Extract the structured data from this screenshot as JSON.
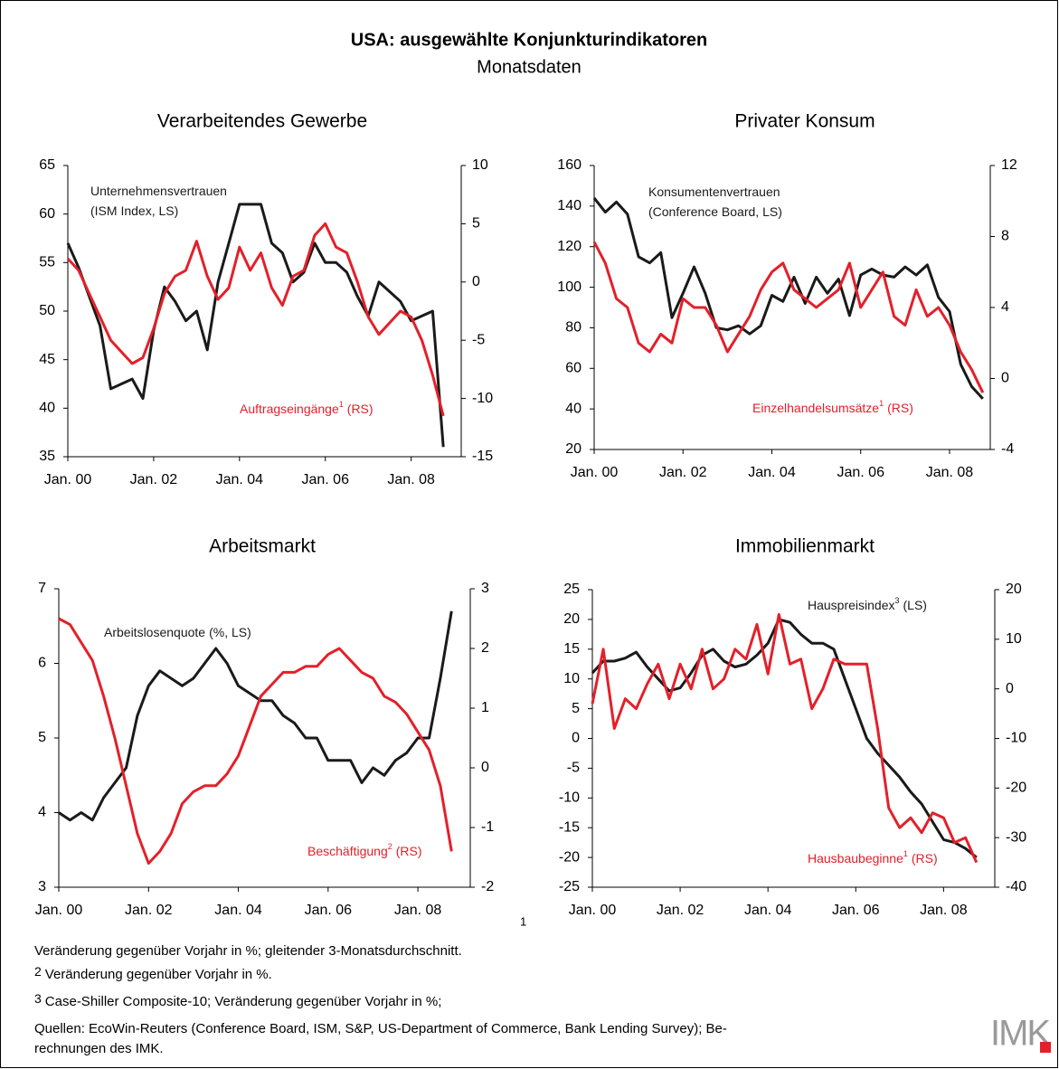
{
  "title": "USA: ausgewählte Konjunkturindikatoren",
  "subtitle": "Monatsdaten",
  "chart_data": [
    {
      "type": "line",
      "title": "Verarbeitendes Gewerbe",
      "x": [
        "2000-01",
        "2000-04",
        "2000-07",
        "2000-10",
        "2001-01",
        "2001-04",
        "2001-07",
        "2001-10",
        "2002-01",
        "2002-04",
        "2002-07",
        "2002-10",
        "2003-01",
        "2003-04",
        "2003-07",
        "2003-10",
        "2004-01",
        "2004-04",
        "2004-07",
        "2004-10",
        "2005-01",
        "2005-04",
        "2005-07",
        "2005-10",
        "2006-01",
        "2006-04",
        "2006-07",
        "2006-10",
        "2007-01",
        "2007-04",
        "2007-07",
        "2007-10",
        "2008-01",
        "2008-04",
        "2008-07",
        "2008-10"
      ],
      "xlim": [
        "2000-01",
        "2009-03"
      ],
      "xticks": [
        {
          "value": "2000-01",
          "label": "Jan. 00"
        },
        {
          "value": "2002-01",
          "label": "Jan. 02"
        },
        {
          "value": "2004-01",
          "label": "Jan. 04"
        },
        {
          "value": "2006-01",
          "label": "Jan. 06"
        },
        {
          "value": "2008-01",
          "label": "Jan. 08"
        }
      ],
      "ylim": [
        35,
        65
      ],
      "yticks": [
        35,
        40,
        45,
        50,
        55,
        60,
        65
      ],
      "y2lim": [
        -15,
        10
      ],
      "y2ticks": [
        -15,
        -10,
        -5,
        0,
        5,
        10
      ],
      "series": [
        {
          "name": "Unternehmensvertrauen",
          "side": "(ISM   Index, LS)",
          "color": "#1a1a1a",
          "axis": "y",
          "values": [
            57,
            54.5,
            51.5,
            48.5,
            42,
            42.5,
            43,
            41,
            48,
            52.5,
            51,
            49,
            50,
            46,
            53,
            57,
            61,
            61,
            61,
            57,
            56,
            53,
            54,
            57,
            55,
            55,
            54,
            51.5,
            49.5,
            53,
            52,
            51,
            49,
            49.5,
            50,
            36
          ]
        },
        {
          "name": "Auftragseingänge",
          "note": "1",
          "side": "(RS)",
          "color": "#e3202a",
          "axis": "y2",
          "values": [
            2,
            1,
            -1,
            -3,
            -5,
            -6,
            -7,
            -6.5,
            -4,
            -1,
            0.5,
            1,
            3.5,
            0.5,
            -1.5,
            -0.5,
            3,
            1,
            2.5,
            -0.5,
            -2,
            0.5,
            1,
            4,
            5,
            3,
            2.5,
            0,
            -3,
            -4.5,
            -3.5,
            -2.5,
            -3,
            -5,
            -8,
            -11.5
          ]
        }
      ]
    },
    {
      "type": "line",
      "title": "Privater Konsum",
      "x": [
        "2000-01",
        "2000-04",
        "2000-07",
        "2000-10",
        "2001-01",
        "2001-04",
        "2001-07",
        "2001-10",
        "2002-01",
        "2002-04",
        "2002-07",
        "2002-10",
        "2003-01",
        "2003-04",
        "2003-07",
        "2003-10",
        "2004-01",
        "2004-04",
        "2004-07",
        "2004-10",
        "2005-01",
        "2005-04",
        "2005-07",
        "2005-10",
        "2006-01",
        "2006-04",
        "2006-07",
        "2006-10",
        "2007-01",
        "2007-04",
        "2007-07",
        "2007-10",
        "2008-01",
        "2008-04",
        "2008-07",
        "2008-10"
      ],
      "xlim": [
        "2000-01",
        "2008-12"
      ],
      "xticks": [
        {
          "value": "2000-01",
          "label": "Jan. 00"
        },
        {
          "value": "2002-01",
          "label": "Jan. 02"
        },
        {
          "value": "2004-01",
          "label": "Jan. 04"
        },
        {
          "value": "2006-01",
          "label": "Jan. 06"
        },
        {
          "value": "2008-01",
          "label": "Jan. 08"
        }
      ],
      "ylim": [
        20,
        160
      ],
      "yticks": [
        20,
        40,
        60,
        80,
        100,
        120,
        140,
        160
      ],
      "y2lim": [
        -4,
        12
      ],
      "y2ticks": [
        -4,
        0,
        4,
        8,
        12
      ],
      "series": [
        {
          "name": "Konsumentenvertrauen",
          "side": "(Conference Board, LS)",
          "color": "#1a1a1a",
          "axis": "y",
          "values": [
            144,
            137,
            142,
            136,
            115,
            112,
            117,
            85,
            97,
            110,
            97,
            80,
            79,
            81,
            77,
            81,
            96,
            93,
            105,
            92,
            105,
            97,
            104,
            86,
            106,
            109,
            106,
            105,
            110,
            106,
            111,
            95,
            88,
            62,
            51,
            45
          ]
        },
        {
          "name": "Einzelhandelsumsätze",
          "note": "1",
          "side": "(RS)",
          "color": "#e3202a",
          "axis": "y2",
          "values": [
            7.7,
            6.5,
            4.5,
            4,
            2,
            1.5,
            2.5,
            2,
            4.5,
            4,
            4,
            3,
            1.5,
            2.5,
            3.5,
            5,
            6,
            6.5,
            5,
            4.5,
            4,
            4.5,
            5,
            6.5,
            4,
            5,
            6,
            3.5,
            3,
            5,
            3.5,
            4,
            3,
            1.5,
            0.5,
            -0.8
          ]
        }
      ]
    },
    {
      "type": "line",
      "title": "Arbeitsmarkt",
      "x": [
        "2000-01",
        "2000-04",
        "2000-07",
        "2000-10",
        "2001-01",
        "2001-04",
        "2001-07",
        "2001-10",
        "2002-01",
        "2002-04",
        "2002-07",
        "2002-10",
        "2003-01",
        "2003-04",
        "2003-07",
        "2003-10",
        "2004-01",
        "2004-04",
        "2004-07",
        "2004-10",
        "2005-01",
        "2005-04",
        "2005-07",
        "2005-10",
        "2006-01",
        "2006-04",
        "2006-07",
        "2006-10",
        "2007-01",
        "2007-04",
        "2007-07",
        "2007-10",
        "2008-01",
        "2008-04",
        "2008-07",
        "2008-10"
      ],
      "xlim": [
        "2000-01",
        "2009-03"
      ],
      "xticks": [
        {
          "value": "2000-01",
          "label": "Jan. 00"
        },
        {
          "value": "2002-01",
          "label": "Jan. 02"
        },
        {
          "value": "2004-01",
          "label": "Jan. 04"
        },
        {
          "value": "2006-01",
          "label": "Jan. 06"
        },
        {
          "value": "2008-01",
          "label": "Jan. 08"
        }
      ],
      "ylim": [
        3,
        7
      ],
      "yticks": [
        3,
        4,
        5,
        6,
        7
      ],
      "y2lim": [
        -2,
        3
      ],
      "y2ticks": [
        -2,
        -1,
        0,
        1,
        2,
        3
      ],
      "series": [
        {
          "name": "Arbeitslosenquote",
          "side": "(%, LS)",
          "color": "#1a1a1a",
          "axis": "y",
          "values": [
            4.0,
            3.9,
            4.0,
            3.9,
            4.2,
            4.4,
            4.6,
            5.3,
            5.7,
            5.9,
            5.8,
            5.7,
            5.8,
            6.0,
            6.2,
            6.0,
            5.7,
            5.6,
            5.5,
            5.5,
            5.3,
            5.2,
            5.0,
            5.0,
            4.7,
            4.7,
            4.7,
            4.4,
            4.6,
            4.5,
            4.7,
            4.8,
            5.0,
            5.0,
            5.8,
            6.7
          ]
        },
        {
          "name": "Beschäftigung",
          "note": "2",
          "side": "(RS)",
          "color": "#e3202a",
          "axis": "y2",
          "values": [
            2.5,
            2.4,
            2.1,
            1.8,
            1.2,
            0.5,
            -0.3,
            -1.1,
            -1.6,
            -1.4,
            -1.1,
            -0.6,
            -0.4,
            -0.3,
            -0.3,
            -0.1,
            0.2,
            0.7,
            1.2,
            1.4,
            1.6,
            1.6,
            1.7,
            1.7,
            1.9,
            2.0,
            1.8,
            1.6,
            1.5,
            1.2,
            1.1,
            0.9,
            0.6,
            0.3,
            -0.3,
            -1.4
          ]
        }
      ]
    },
    {
      "type": "line",
      "title": "Immobilienmarkt",
      "x": [
        "2000-01",
        "2000-04",
        "2000-07",
        "2000-10",
        "2001-01",
        "2001-04",
        "2001-07",
        "2001-10",
        "2002-01",
        "2002-04",
        "2002-07",
        "2002-10",
        "2003-01",
        "2003-04",
        "2003-07",
        "2003-10",
        "2004-01",
        "2004-04",
        "2004-07",
        "2004-10",
        "2005-01",
        "2005-04",
        "2005-07",
        "2005-10",
        "2006-01",
        "2006-04",
        "2006-07",
        "2006-10",
        "2007-01",
        "2007-04",
        "2007-07",
        "2007-10",
        "2008-01",
        "2008-04",
        "2008-07",
        "2008-10"
      ],
      "xlim": [
        "2000-01",
        "2009-03"
      ],
      "xticks": [
        {
          "value": "2000-01",
          "label": "Jan. 00"
        },
        {
          "value": "2002-01",
          "label": "Jan. 02"
        },
        {
          "value": "2004-01",
          "label": "Jan. 04"
        },
        {
          "value": "2006-01",
          "label": "Jan. 06"
        },
        {
          "value": "2008-01",
          "label": "Jan. 08"
        }
      ],
      "ylim": [
        -25,
        25
      ],
      "yticks": [
        -25,
        -20,
        -15,
        -10,
        -5,
        0,
        5,
        10,
        15,
        20,
        25
      ],
      "y2lim": [
        -40,
        20
      ],
      "y2ticks": [
        -40,
        -30,
        -20,
        -10,
        0,
        10,
        20
      ],
      "series": [
        {
          "name": "Hauspreisindex",
          "note": "3",
          "side": "(LS)",
          "color": "#1a1a1a",
          "axis": "y",
          "values": [
            11,
            13,
            13,
            13.5,
            14.5,
            12,
            10,
            8,
            8.5,
            11,
            14,
            15,
            13,
            12,
            12.5,
            14,
            16,
            20,
            19.5,
            17.5,
            16,
            16,
            15,
            10,
            5,
            0,
            -2.5,
            -4.5,
            -6.5,
            -9,
            -11,
            -14,
            -17,
            -17.5,
            -18.5,
            -20
          ]
        },
        {
          "name": "Hausbaubeginne",
          "note": "1",
          "side": "(RS)",
          "color": "#e3202a",
          "axis": "y2",
          "values": [
            -3,
            8,
            -8,
            -2,
            -4,
            1,
            5,
            -2,
            5,
            0,
            8,
            0,
            2,
            8,
            6,
            13,
            3,
            15,
            5,
            6,
            -4,
            0,
            6,
            5,
            5,
            5,
            -8,
            -24,
            -28,
            -26,
            -29,
            -25,
            -26,
            -31,
            -30,
            -35
          ]
        }
      ]
    }
  ],
  "footnotes": [
    {
      "mark": "1",
      "text": "Veränderung gegenüber Vorjahr in %; gleitender 3-Monatsdurchschnitt."
    },
    {
      "mark": "2",
      "text": "Veränderung gegenüber Vorjahr in %."
    },
    {
      "mark": "3",
      "text": "Case-Shiller Composite-10; Veränderung gegenüber Vorjahr in %;"
    }
  ],
  "sources": [
    "Quellen: EcoWin-Reuters (Conference Board, ISM, S&P, US-Department of Commerce, Bank Lending Survey); Be-",
    "rechnungen des IMK."
  ],
  "logo": "IMK"
}
